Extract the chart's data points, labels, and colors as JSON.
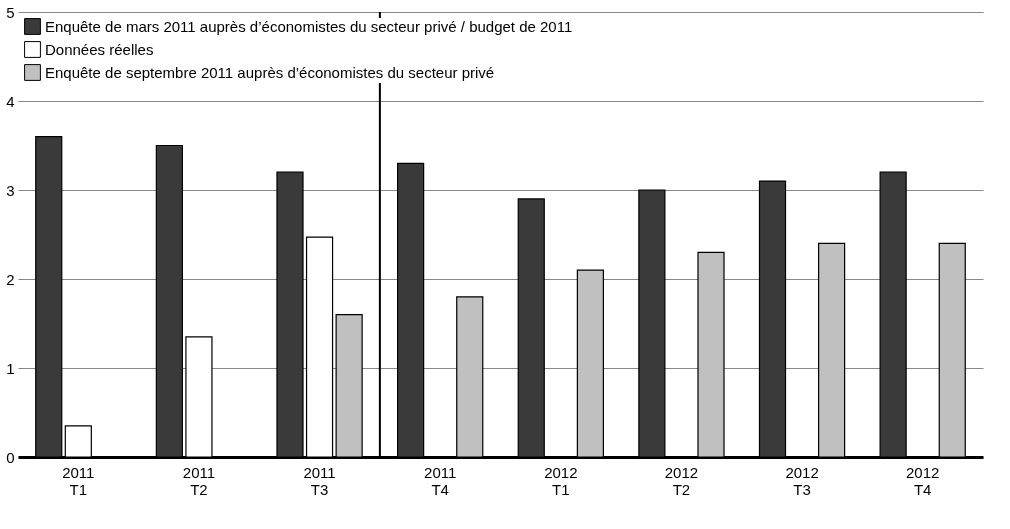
{
  "chart_data": {
    "type": "bar",
    "categories": [
      "2011 T1",
      "2011 T2",
      "2011 T3",
      "2011 T4",
      "2012 T1",
      "2012 T2",
      "2012 T3",
      "2012 T4"
    ],
    "series": [
      {
        "name": "Enquête de mars 2011 auprès d’économistes du secteur privé / budget de 2011",
        "color": "#3a3a3a",
        "values": [
          3.6,
          3.5,
          3.2,
          3.3,
          2.9,
          3.0,
          3.1,
          3.2
        ]
      },
      {
        "name": "Données réelles",
        "color": "#ffffff",
        "values": [
          0.35,
          1.35,
          2.47,
          null,
          null,
          null,
          null,
          null
        ]
      },
      {
        "name": "Enquête de septembre  2011 auprès d’économistes du secteur privé",
        "color": "#c0c0c0",
        "values": [
          null,
          null,
          1.6,
          1.8,
          2.1,
          2.3,
          2.4,
          2.4
        ]
      }
    ],
    "ylim": [
      0,
      5
    ],
    "yticks": [
      0,
      1,
      2,
      3,
      4,
      5
    ],
    "grid": "y",
    "legend": "top left",
    "ref_lines": [
      {
        "axis": "x",
        "value": "2011 T4"
      }
    ]
  }
}
